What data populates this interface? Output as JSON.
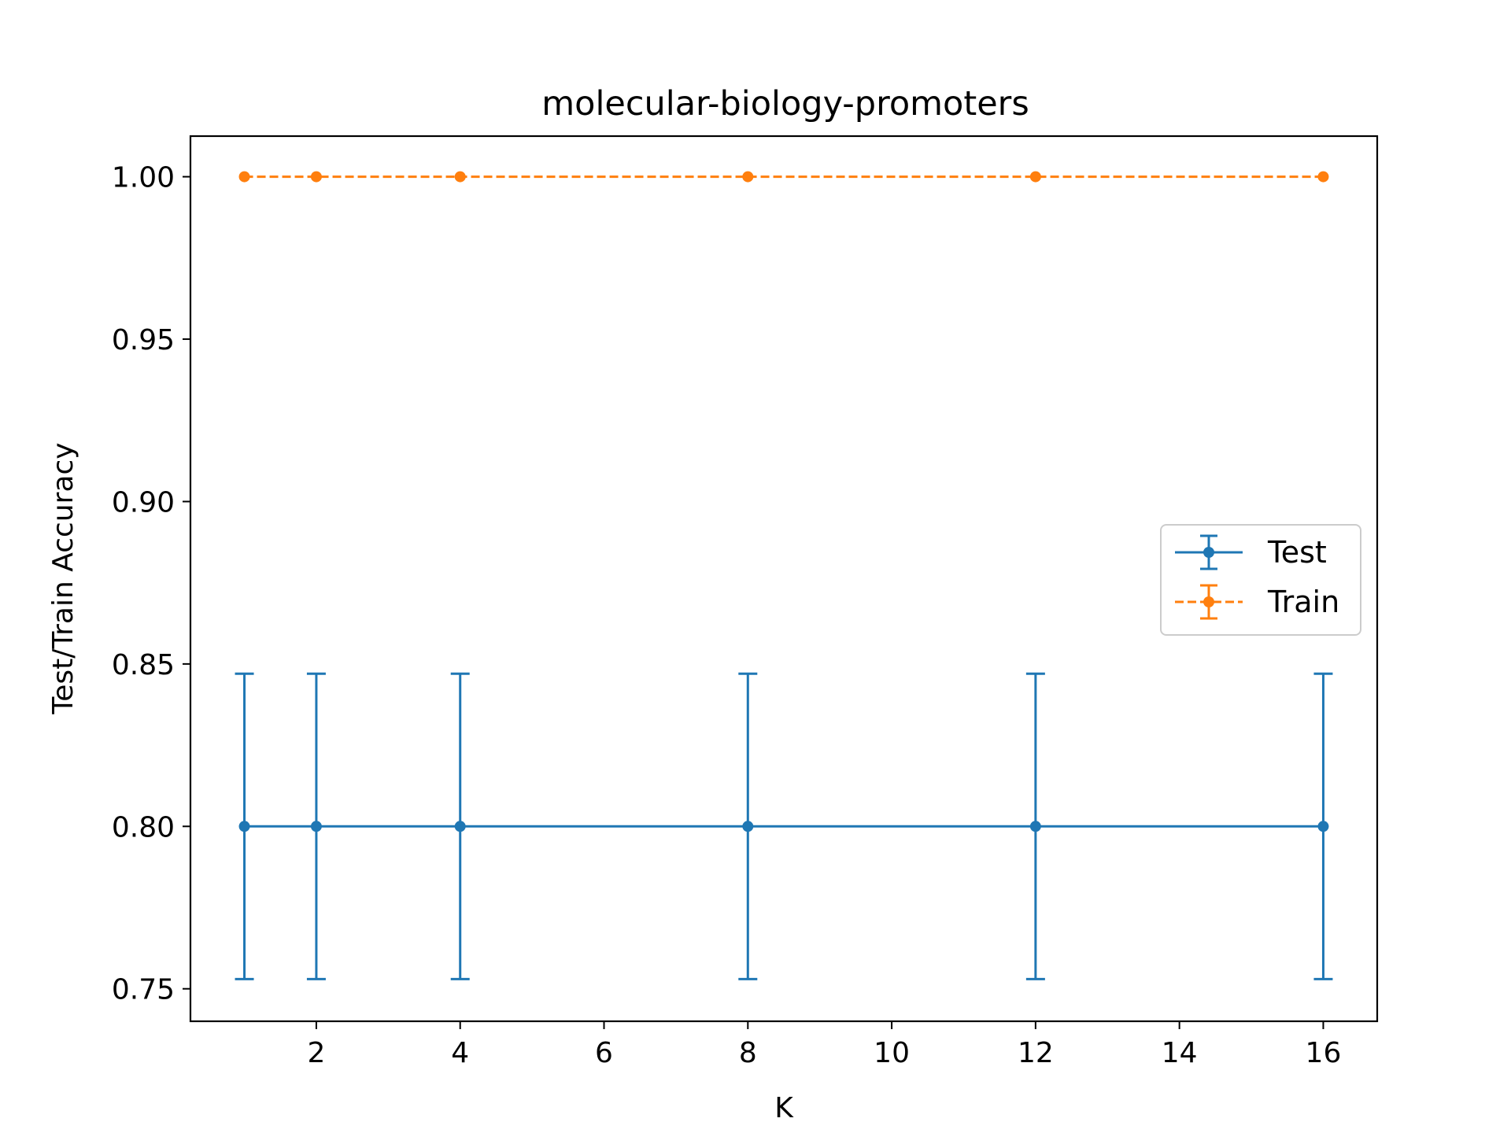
{
  "chart_data": {
    "type": "line",
    "title": "molecular-biology-promoters",
    "xlabel": "K",
    "ylabel": "Test/Train Accuracy",
    "xlim": [
      0.25,
      16.75
    ],
    "ylim": [
      0.74,
      1.0125
    ],
    "xticks": [
      2,
      4,
      6,
      8,
      10,
      12,
      14,
      16
    ],
    "xtick_labels": [
      "2",
      "4",
      "6",
      "8",
      "10",
      "12",
      "14",
      "16"
    ],
    "yticks": [
      0.75,
      0.8,
      0.85,
      0.9,
      0.95,
      1.0
    ],
    "ytick_labels": [
      "0.75",
      "0.80",
      "0.85",
      "0.90",
      "0.95",
      "1.00"
    ],
    "grid": false,
    "legend_position": "center-right",
    "x": [
      1,
      2,
      4,
      8,
      12,
      16
    ],
    "series": [
      {
        "name": "Test",
        "values": [
          0.8,
          0.8,
          0.8,
          0.8,
          0.8,
          0.8
        ],
        "error": [
          0.047,
          0.047,
          0.047,
          0.047,
          0.047,
          0.047
        ],
        "color": "#1f77b4",
        "line_style": "solid"
      },
      {
        "name": "Train",
        "values": [
          1.0,
          1.0,
          1.0,
          1.0,
          1.0,
          1.0
        ],
        "error": [
          0,
          0,
          0,
          0,
          0,
          0
        ],
        "color": "#ff7f0e",
        "line_style": "dashed"
      }
    ]
  }
}
